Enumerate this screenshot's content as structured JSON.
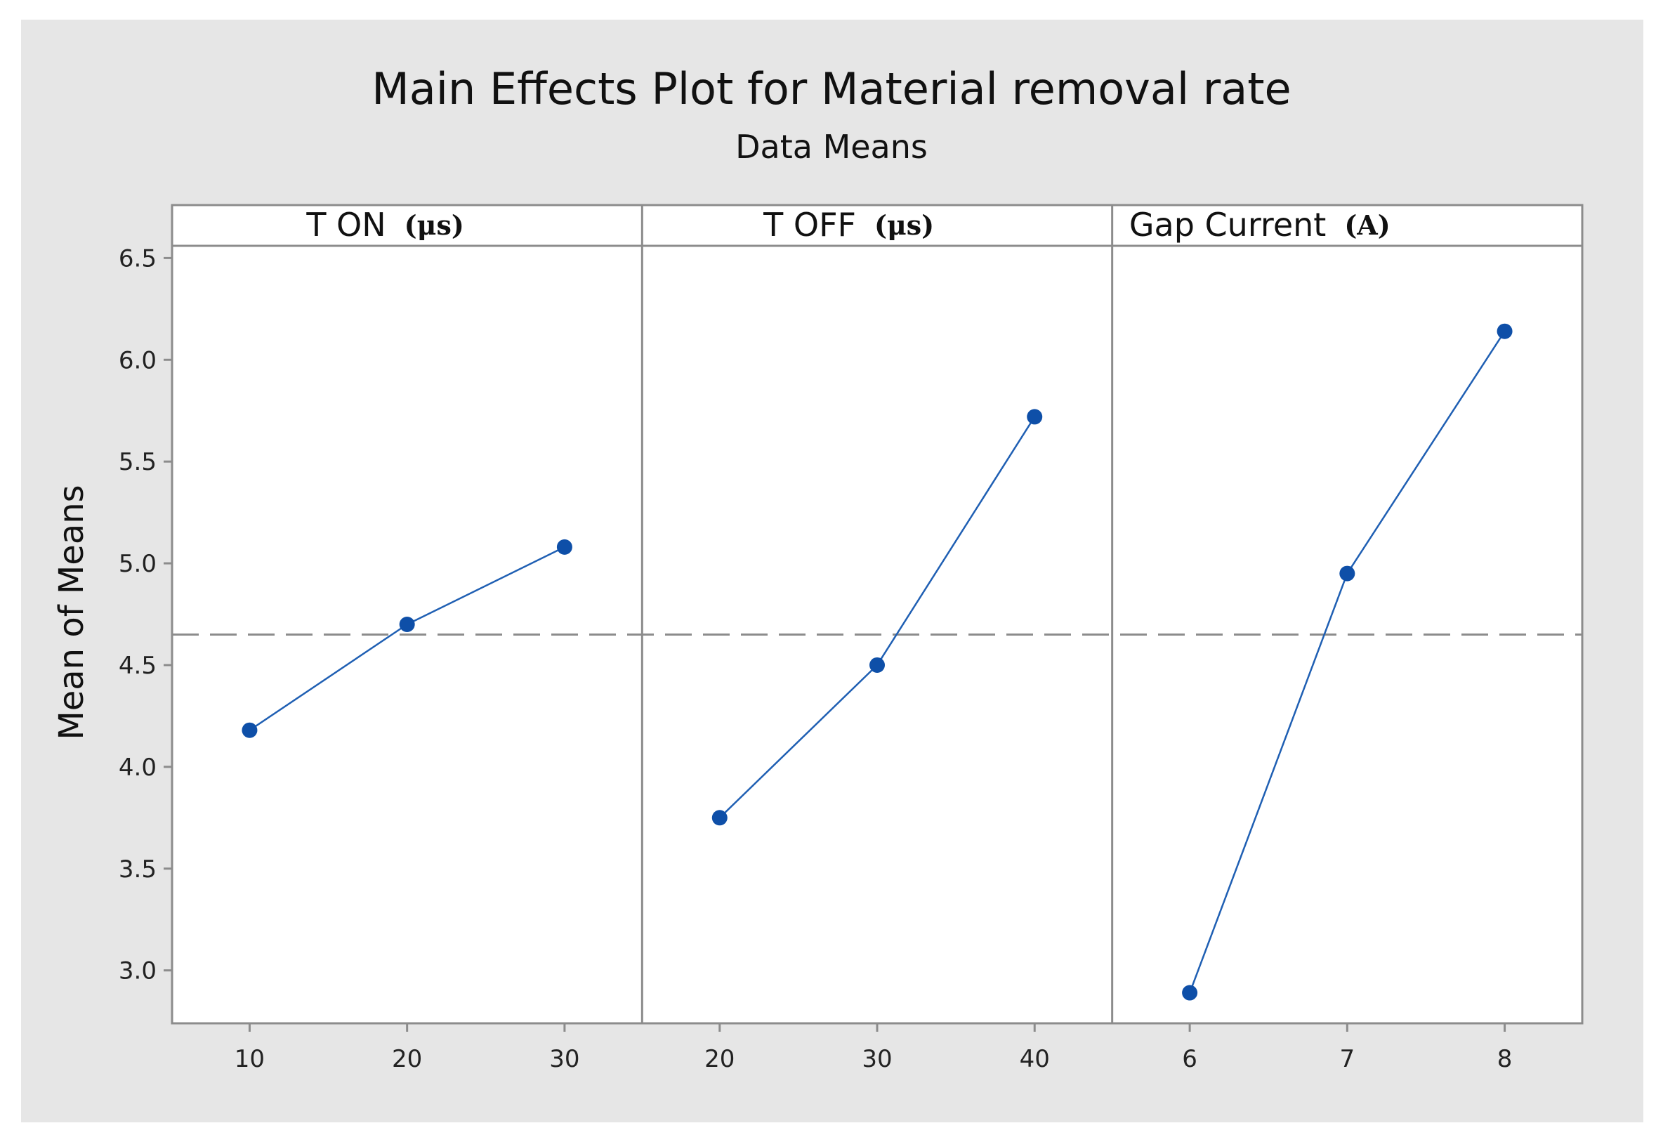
{
  "chart_data": {
    "type": "line",
    "title": "Main Effects Plot for Material removal rate",
    "subtitle": "Data Means",
    "ylabel": "Mean of Means",
    "ylim": [
      2.74,
      6.56
    ],
    "yticks": [
      "3.0",
      "3.5",
      "4.0",
      "4.5",
      "5.0",
      "5.5",
      "6.0",
      "6.5"
    ],
    "grand_mean": 4.65,
    "grid": false,
    "legend": "none",
    "line_color": "#1f5fb3",
    "marker_color": "#0e4fa8",
    "panels": [
      {
        "name": "T ON",
        "unit": "(μs)",
        "x": [
          "10",
          "20",
          "30"
        ],
        "values": [
          4.18,
          4.7,
          5.08
        ]
      },
      {
        "name": "T OFF",
        "unit": "(μs)",
        "x": [
          "20",
          "30",
          "40"
        ],
        "values": [
          3.75,
          4.5,
          5.72
        ]
      },
      {
        "name": "Gap Current",
        "unit": "(A)",
        "x": [
          "6",
          "7",
          "8"
        ],
        "values": [
          2.89,
          4.95,
          6.14
        ]
      }
    ]
  }
}
